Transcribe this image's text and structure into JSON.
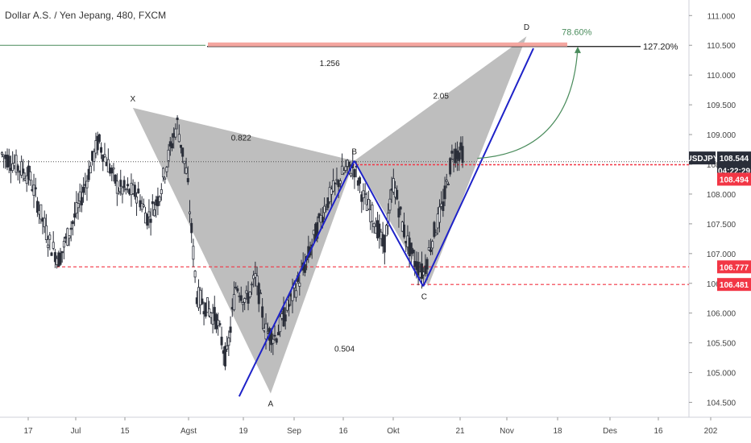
{
  "chart_data": {
    "type": "candlestick",
    "title": "Dollar A.S. / Yen Jepang, 480, FXCM",
    "price_axis": {
      "ticks": [
        "111.000",
        "110.500",
        "110.000",
        "109.500",
        "109.000",
        "108.500",
        "108.000",
        "107.500",
        "107.000",
        "106.500",
        "106.000",
        "105.500",
        "105.000",
        "104.500"
      ],
      "range": [
        104.25,
        111.18
      ]
    },
    "time_axis": {
      "ticks": [
        "17",
        "Jul",
        "15",
        "Agst",
        "19",
        "Sep",
        "16",
        "Okt",
        "21",
        "Nov",
        "18",
        "Des",
        "16",
        "202"
      ]
    },
    "pattern": {
      "points": [
        {
          "label": "X",
          "t": 13.5,
          "price": 109.45
        },
        {
          "label": "A",
          "t": 27.5,
          "price": 104.65
        },
        {
          "label": "B",
          "t": 36.0,
          "price": 108.56
        },
        {
          "label": "C",
          "t": 43.5,
          "price": 106.45
        },
        {
          "label": "D",
          "t": 53.5,
          "price": 110.65
        }
      ],
      "ratios": [
        {
          "label": "0.822",
          "t": 24.5,
          "price": 108.9
        },
        {
          "label": "1.256",
          "t": 33.5,
          "price": 110.15
        },
        {
          "label": "2.05",
          "t": 44.8,
          "price": 109.6
        },
        {
          "label": "0.504",
          "t": 35.0,
          "price": 105.35
        }
      ]
    },
    "fib_label": "127.20%",
    "fib_level": 110.48,
    "projection_label": "78.60%",
    "price_labels": [
      {
        "text": "USDJPY",
        "price": 108.62,
        "color": "#2a2e39"
      },
      {
        "text": "108.544",
        "price": 108.62,
        "color": "#2a2e39"
      },
      {
        "text": "04:22:29",
        "price": 108.44,
        "color": "#2a2e39"
      },
      {
        "text": "108.494",
        "price": 108.25,
        "color": "#f23645"
      },
      {
        "text": "106.777",
        "price": 106.777,
        "color": "#f23645"
      },
      {
        "text": "106.481",
        "price": 106.481,
        "color": "#f23645"
      }
    ],
    "levels": [
      {
        "price": 106.777,
        "color": "#f23645"
      },
      {
        "price": 106.481,
        "color": "#f23645"
      },
      {
        "price": 108.494,
        "color": "#f23645"
      },
      {
        "price": 108.544,
        "color": "#555555"
      }
    ],
    "colors": {
      "candle": "#2a2e39",
      "pattern_fill": "#b3b3b3",
      "trend": "#1e22c8",
      "red_level": "#f23645",
      "green_arc": "#4a8c5c",
      "zone": "#f4a6a0"
    }
  }
}
